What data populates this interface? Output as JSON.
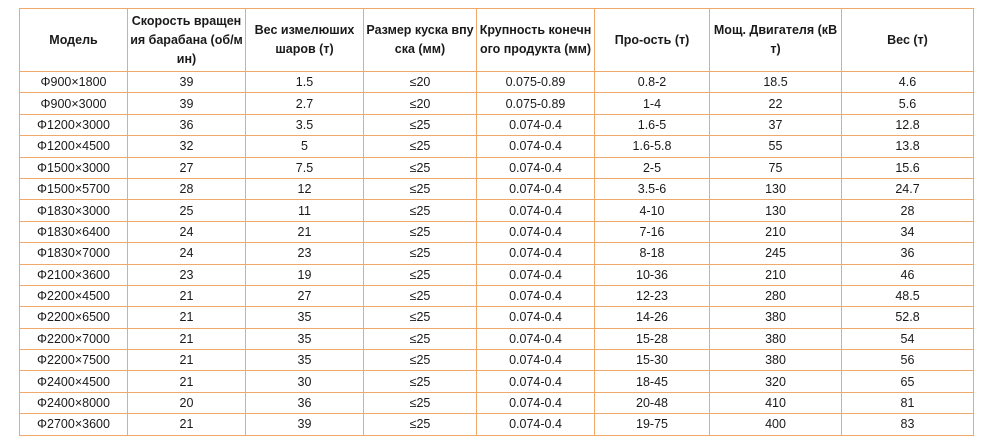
{
  "table": {
    "headers": [
      "Модель",
      "Скорость вращения барабана (об/мин)",
      "Вес измелюших шаров (т)",
      "Размер куска впуска (мм)",
      "Крупность конечного продукта (мм)",
      "Про-ость (т)",
      "Мощ. Двигателя (кВ т)",
      "Вес (т)"
    ],
    "rows": [
      [
        "Φ900×1800",
        "39",
        "1.5",
        "≤20",
        "0.075-0.89",
        "0.8-2",
        "18.5",
        "4.6"
      ],
      [
        "Φ900×3000",
        "39",
        "2.7",
        "≤20",
        "0.075-0.89",
        "1-4",
        "22",
        "5.6"
      ],
      [
        "Φ1200×3000",
        "36",
        "3.5",
        "≤25",
        "0.074-0.4",
        "1.6-5",
        "37",
        "12.8"
      ],
      [
        "Φ1200×4500",
        "32",
        "5",
        "≤25",
        "0.074-0.4",
        "1.6-5.8",
        "55",
        "13.8"
      ],
      [
        "Φ1500×3000",
        "27",
        "7.5",
        "≤25",
        "0.074-0.4",
        "2-5",
        "75",
        "15.6"
      ],
      [
        "Φ1500×5700",
        "28",
        "12",
        "≤25",
        "0.074-0.4",
        "3.5-6",
        "130",
        "24.7"
      ],
      [
        "Φ1830×3000",
        "25",
        "11",
        "≤25",
        "0.074-0.4",
        "4-10",
        "130",
        "28"
      ],
      [
        "Φ1830×6400",
        "24",
        "21",
        "≤25",
        "0.074-0.4",
        "7-16",
        "210",
        "34"
      ],
      [
        "Φ1830×7000",
        "24",
        "23",
        "≤25",
        "0.074-0.4",
        "8-18",
        "245",
        "36"
      ],
      [
        "Φ2100×3600",
        "23",
        "19",
        "≤25",
        "0.074-0.4",
        "10-36",
        "210",
        "46"
      ],
      [
        "Φ2200×4500",
        "21",
        "27",
        "≤25",
        "0.074-0.4",
        "12-23",
        "280",
        "48.5"
      ],
      [
        "Φ2200×6500",
        "21",
        "35",
        "≤25",
        "0.074-0.4",
        "14-26",
        "380",
        "52.8"
      ],
      [
        "Φ2200×7000",
        "21",
        "35",
        "≤25",
        "0.074-0.4",
        "15-28",
        "380",
        "54"
      ],
      [
        "Φ2200×7500",
        "21",
        "35",
        "≤25",
        "0.074-0.4",
        "15-30",
        "380",
        "56"
      ],
      [
        "Φ2400×4500",
        "21",
        "30",
        "≤25",
        "0.074-0.4",
        "18-45",
        "320",
        "65"
      ],
      [
        "Φ2400×8000",
        "20",
        "36",
        "≤25",
        "0.074-0.4",
        "20-48",
        "410",
        "81"
      ],
      [
        "Φ2700×3600",
        "21",
        "39",
        "≤25",
        "0.074-0.4",
        "19-75",
        "400",
        "83"
      ]
    ]
  }
}
